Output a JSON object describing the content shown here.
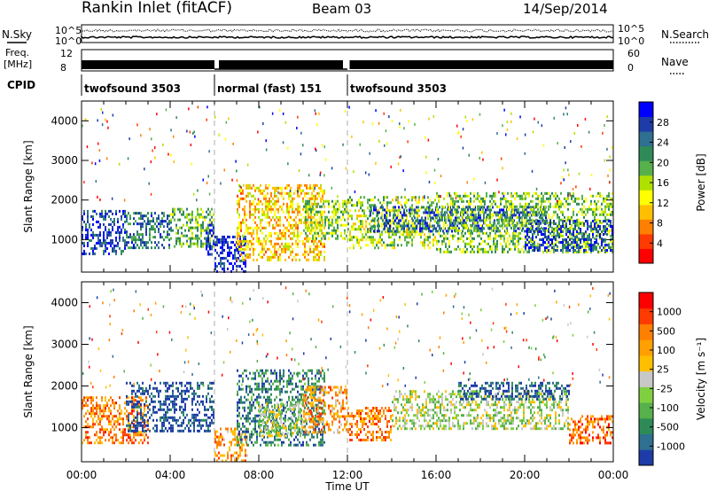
{
  "header": {
    "station": "Rankin Inlet (fitACF)",
    "beam": "Beam 03",
    "date": "14/Sep/2014"
  },
  "summary": {
    "nsky_label": "N.Sky",
    "nsky_ticks": [
      "10^5",
      "10^0"
    ],
    "nsearch_label": "N.Search",
    "nsearch_ticks": [
      "10^5",
      "10^0"
    ],
    "freq_label": "Freq.",
    "freq_unit": "[MHz]",
    "freq_ticks": [
      "12",
      "8"
    ],
    "nave_label": "Nave",
    "nave_ticks": [
      "60",
      "0"
    ],
    "cpid_label": "CPID",
    "cpid_segments": [
      {
        "label": "twofsound 3503",
        "start": 0,
        "end": 6
      },
      {
        "label": "normal (fast) 151",
        "start": 6,
        "end": 12
      },
      {
        "label": "twofsound 3503",
        "start": 12,
        "end": 24
      }
    ]
  },
  "chart_data": [
    {
      "type": "heatmap",
      "title": "",
      "xlabel": "",
      "ylabel": "Slant Range [km]",
      "x_ticks": [
        "00:00",
        "04:00",
        "08:00",
        "12:00",
        "16:00",
        "20:00",
        "00:00"
      ],
      "x_range_hours": [
        0,
        24
      ],
      "y_ticks": [
        1000,
        2000,
        3000,
        4000
      ],
      "ylim": [
        180,
        4500
      ],
      "colorbar_label": "Power [dB]",
      "colorbar_ticks": [
        "28",
        "24",
        "20",
        "16",
        "12",
        "8",
        "4"
      ],
      "colorbar_colors": [
        "#ff0000",
        "#ff3a00",
        "#ff7f00",
        "#ffbf00",
        "#ffff00",
        "#b0e000",
        "#56b04b",
        "#2e8b57",
        "#2f6f90",
        "#1e3ca8",
        "#0000ff"
      ],
      "scatter_blocks": [
        {
          "start": 0.0,
          "end": 2.0,
          "rmin": 650,
          "rmax": 1750,
          "level": 0.85
        },
        {
          "start": 2.0,
          "end": 4.0,
          "rmin": 800,
          "rmax": 1700,
          "level": 0.75
        },
        {
          "start": 4.0,
          "end": 6.0,
          "rmin": 800,
          "rmax": 1800,
          "level": 0.6
        },
        {
          "start": 5.6,
          "end": 6.0,
          "rmin": 650,
          "rmax": 1400,
          "level": 0.9
        },
        {
          "start": 6.0,
          "end": 7.4,
          "rmin": 200,
          "rmax": 1100,
          "level": 0.9
        },
        {
          "start": 7.0,
          "end": 11.0,
          "rmin": 500,
          "rmax": 2400,
          "level": 0.35
        },
        {
          "start": 10.0,
          "end": 12.0,
          "rmin": 1000,
          "rmax": 2000,
          "level": 0.55
        },
        {
          "start": 12.0,
          "end": 16.0,
          "rmin": 800,
          "rmax": 2100,
          "level": 0.5
        },
        {
          "start": 13.0,
          "end": 21.0,
          "rmin": 1200,
          "rmax": 1850,
          "level": 0.8
        },
        {
          "start": 16.0,
          "end": 24.0,
          "rmin": 700,
          "rmax": 2200,
          "level": 0.55
        },
        {
          "start": 20.0,
          "end": 24.0,
          "rmin": 700,
          "rmax": 1500,
          "level": 0.85
        }
      ]
    },
    {
      "type": "heatmap",
      "title": "",
      "xlabel": "Time UT",
      "ylabel": "Slant Range [km]",
      "x_ticks": [
        "00:00",
        "04:00",
        "08:00",
        "12:00",
        "16:00",
        "20:00",
        "00:00"
      ],
      "x_range_hours": [
        0,
        24
      ],
      "y_ticks": [
        1000,
        2000,
        3000,
        4000
      ],
      "ylim": [
        180,
        4500
      ],
      "colorbar_label": "Velocity [m s⁻¹]",
      "colorbar_ticks": [
        "1000",
        "500",
        "100",
        "25",
        "-25",
        "-100",
        "-500",
        "-1000"
      ],
      "colorbar_colors": [
        "#1e3ca8",
        "#2f6f90",
        "#2e8b57",
        "#56b04b",
        "#7fd040",
        "#c8c8c8",
        "#ffbf00",
        "#ff9f00",
        "#ff7f00",
        "#ff3a00",
        "#ff0000"
      ],
      "scatter_blocks": [
        {
          "start": 0.0,
          "end": 3.0,
          "rmin": 650,
          "rmax": 1750,
          "level": 0.75
        },
        {
          "start": 2.0,
          "end": 6.0,
          "rmin": 900,
          "rmax": 2100,
          "level": 0.05
        },
        {
          "start": 6.0,
          "end": 7.5,
          "rmin": 200,
          "rmax": 1000,
          "level": 0.7
        },
        {
          "start": 7.0,
          "end": 11.0,
          "rmin": 600,
          "rmax": 2400,
          "level": 0.2
        },
        {
          "start": 8.0,
          "end": 10.0,
          "rmin": 800,
          "rmax": 1600,
          "level": 0.45
        },
        {
          "start": 10.0,
          "end": 12.0,
          "rmin": 900,
          "rmax": 2000,
          "level": 0.7
        },
        {
          "start": 12.0,
          "end": 14.0,
          "rmin": 700,
          "rmax": 1500,
          "level": 0.75
        },
        {
          "start": 14.0,
          "end": 22.0,
          "rmin": 1000,
          "rmax": 1900,
          "level": 0.45
        },
        {
          "start": 17.0,
          "end": 22.0,
          "rmin": 1700,
          "rmax": 2100,
          "level": 0.1
        },
        {
          "start": 22.0,
          "end": 24.0,
          "rmin": 600,
          "rmax": 1300,
          "level": 0.8
        }
      ]
    }
  ]
}
